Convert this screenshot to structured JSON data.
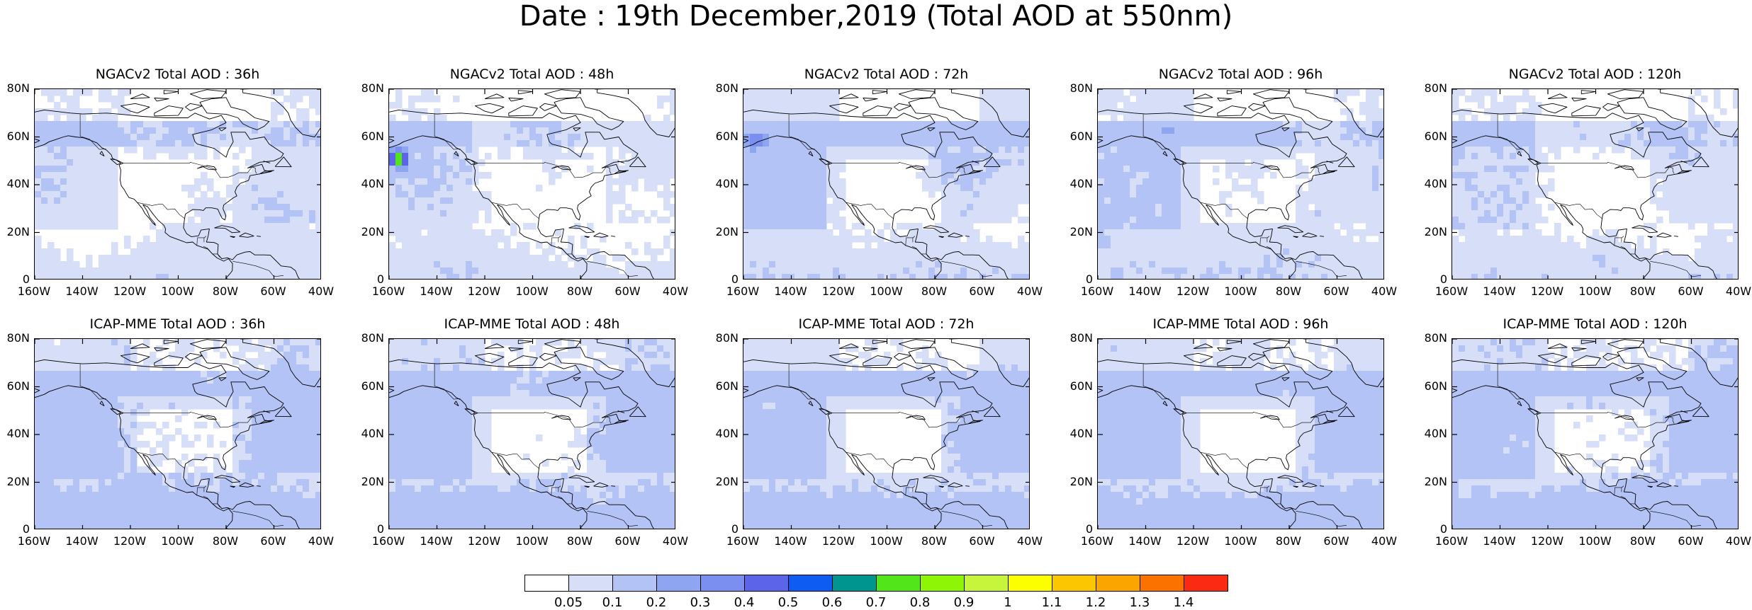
{
  "title": "Date : 19th December,2019 (Total AOD at 550nm)",
  "lon_ticks": [
    "160W",
    "140W",
    "120W",
    "100W",
    "80W",
    "60W",
    "40W"
  ],
  "lat_ticks": [
    "80N",
    "60N",
    "40N",
    "20N",
    "0"
  ],
  "map_extent": {
    "lon": [
      -160,
      -40
    ],
    "lat": [
      0,
      80
    ]
  },
  "panels": [
    {
      "title": "NGACv2 Total AOD : 36h",
      "model": "NGACv2",
      "lead": "36h"
    },
    {
      "title": "NGACv2 Total AOD : 48h",
      "model": "NGACv2",
      "lead": "48h"
    },
    {
      "title": "NGACv2 Total AOD : 72h",
      "model": "NGACv2",
      "lead": "72h"
    },
    {
      "title": "NGACv2 Total AOD : 96h",
      "model": "NGACv2",
      "lead": "96h"
    },
    {
      "title": "NGACv2 Total AOD : 120h",
      "model": "NGACv2",
      "lead": "120h"
    },
    {
      "title": "ICAP-MME Total AOD : 36h",
      "model": "ICAP-MME",
      "lead": "36h"
    },
    {
      "title": "ICAP-MME Total AOD : 48h",
      "model": "ICAP-MME",
      "lead": "48h"
    },
    {
      "title": "ICAP-MME Total AOD : 72h",
      "model": "ICAP-MME",
      "lead": "72h"
    },
    {
      "title": "ICAP-MME Total AOD : 96h",
      "model": "ICAP-MME",
      "lead": "96h"
    },
    {
      "title": "ICAP-MME Total AOD : 120h",
      "model": "ICAP-MME",
      "lead": "120h"
    }
  ],
  "colorbar": {
    "levels": [
      "0.05",
      "0.1",
      "0.2",
      "0.3",
      "0.4",
      "0.5",
      "0.6",
      "0.7",
      "0.8",
      "0.9",
      "1",
      "1.1",
      "1.2",
      "1.3",
      "1.4"
    ],
    "colors": [
      "#ffffff",
      "#d6def8",
      "#b4c3f5",
      "#8ea6f1",
      "#7b8ff0",
      "#5c64ea",
      "#0f5cf2",
      "#00968f",
      "#52e61a",
      "#8df505",
      "#c6f53c",
      "#fbff00",
      "#fcc600",
      "#fba500",
      "#fb7200",
      "#fb2a13"
    ]
  }
}
